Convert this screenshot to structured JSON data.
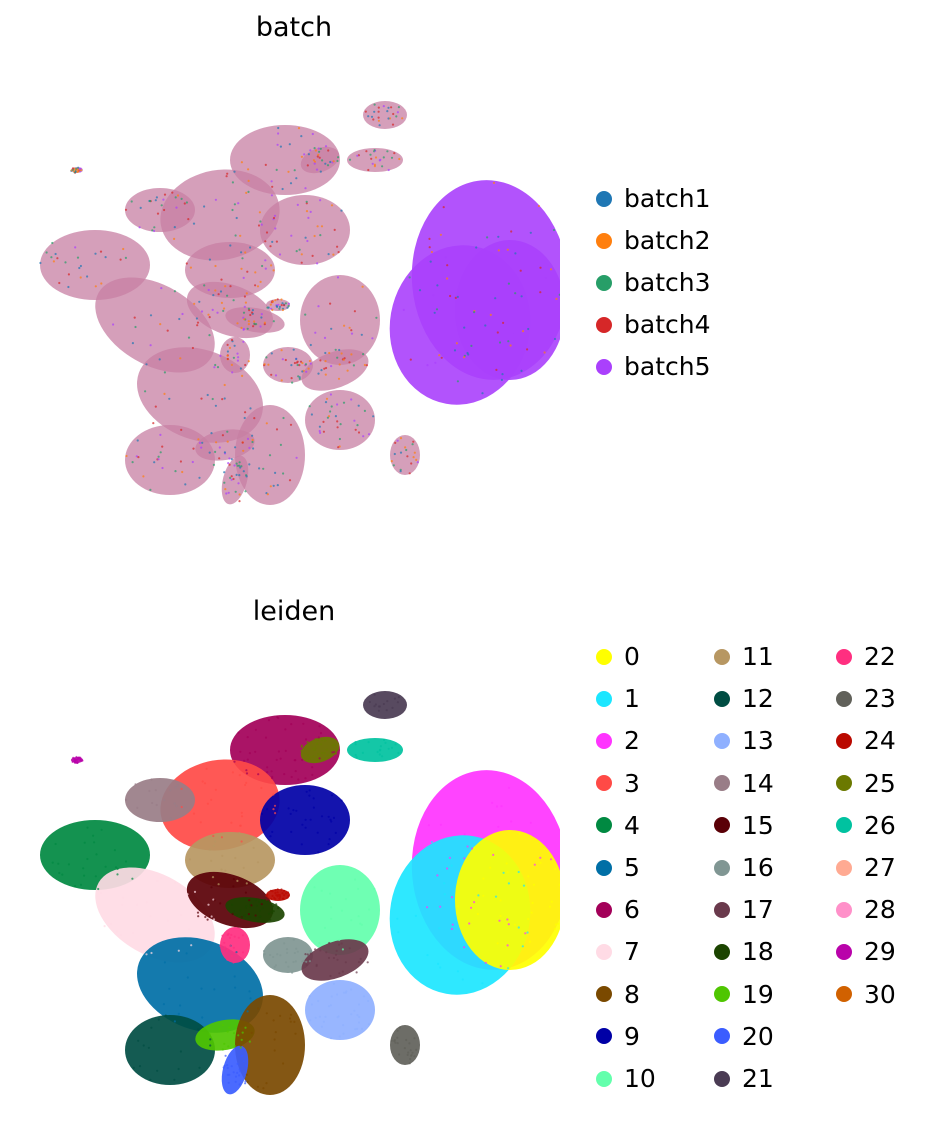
{
  "chart_data": [
    {
      "type": "scatter",
      "title": "batch",
      "xlabel": "",
      "ylabel": "",
      "grid": false,
      "legend_placement": "right",
      "legend": [
        {
          "label": "batch1",
          "color": "#1f77b4"
        },
        {
          "label": "batch2",
          "color": "#ff7f0e"
        },
        {
          "label": "batch3",
          "color": "#279e68"
        },
        {
          "label": "batch4",
          "color": "#d62728"
        },
        {
          "label": "batch5",
          "color": "#aa40fc"
        }
      ]
    },
    {
      "type": "scatter",
      "title": "leiden",
      "xlabel": "",
      "ylabel": "",
      "grid": false,
      "legend_placement": "right",
      "legend": [
        {
          "label": "0",
          "color": "#ffff00"
        },
        {
          "label": "1",
          "color": "#1ce6ff"
        },
        {
          "label": "2",
          "color": "#ff34ff"
        },
        {
          "label": "3",
          "color": "#ff4a46"
        },
        {
          "label": "4",
          "color": "#008941"
        },
        {
          "label": "5",
          "color": "#006fa6"
        },
        {
          "label": "6",
          "color": "#a30059"
        },
        {
          "label": "7",
          "color": "#ffdbe5"
        },
        {
          "label": "8",
          "color": "#7a4900"
        },
        {
          "label": "9",
          "color": "#0000a6"
        },
        {
          "label": "10",
          "color": "#63ffac"
        },
        {
          "label": "11",
          "color": "#b79762"
        },
        {
          "label": "12",
          "color": "#004d43"
        },
        {
          "label": "13",
          "color": "#8fb0ff"
        },
        {
          "label": "14",
          "color": "#997d87"
        },
        {
          "label": "15",
          "color": "#5a0007"
        },
        {
          "label": "16",
          "color": "#809693"
        },
        {
          "label": "17",
          "color": "#6a3a4c"
        },
        {
          "label": "18",
          "color": "#1b4400"
        },
        {
          "label": "19",
          "color": "#4fc601"
        },
        {
          "label": "20",
          "color": "#3b5dff"
        },
        {
          "label": "21",
          "color": "#4a3b53"
        },
        {
          "label": "22",
          "color": "#ff2f80"
        },
        {
          "label": "23",
          "color": "#61615a"
        },
        {
          "label": "24",
          "color": "#ba0900"
        },
        {
          "label": "25",
          "color": "#6b7900"
        },
        {
          "label": "26",
          "color": "#00c2a0"
        },
        {
          "label": "27",
          "color": "#ffaa92"
        },
        {
          "label": "28",
          "color": "#ff90c9"
        },
        {
          "label": "29",
          "color": "#b903aa"
        },
        {
          "label": "30",
          "color": "#d16100"
        }
      ]
    }
  ]
}
